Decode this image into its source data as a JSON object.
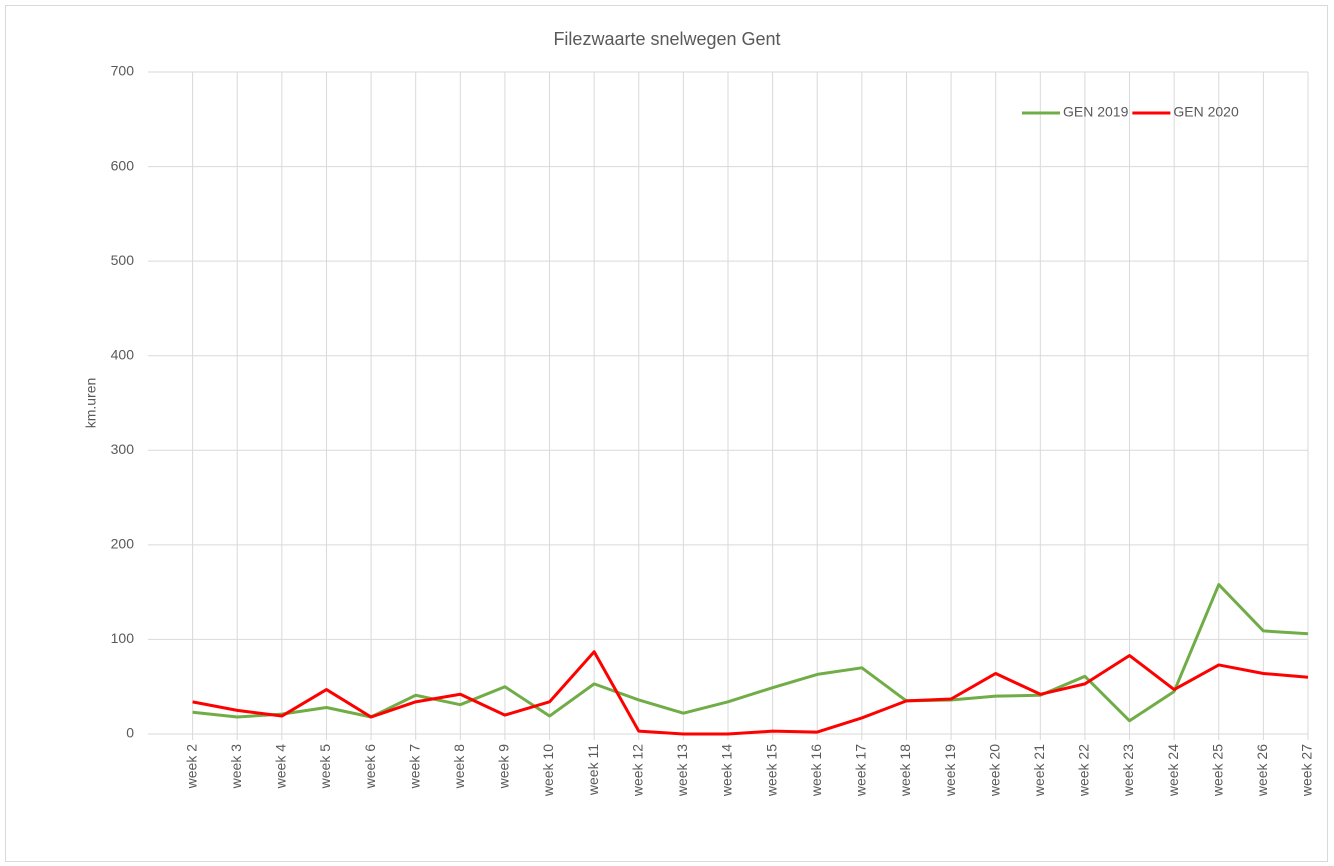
{
  "chart_data": {
    "type": "line",
    "title": "Filezwaarte snelwegen Gent",
    "y_label": "km.uren",
    "categories": [
      null,
      "week 2",
      "week 3",
      "week 4",
      "week 5",
      "week 6",
      "week 7",
      "week 8",
      "week 9",
      "week 10",
      "week 11",
      "week 12",
      "week 13",
      "week 14",
      "week 15",
      "week 16",
      "week 17",
      "week 18",
      "week 19",
      "week 20",
      "week 21",
      "week 22",
      "week 23",
      "week 24",
      "week 25",
      "week 26",
      "week 27"
    ],
    "series": [
      {
        "name": "GEN 2019",
        "color": "#70ad47",
        "values": [
          null,
          23,
          18,
          21,
          28,
          18,
          41,
          31,
          50,
          19,
          53,
          36,
          22,
          34,
          49,
          63,
          70,
          35,
          36,
          40,
          41,
          61,
          14,
          45,
          158,
          109,
          106
        ]
      },
      {
        "name": "GEN 2020",
        "color": "#ff0000",
        "values": [
          null,
          34,
          25,
          19,
          47,
          18,
          34,
          42,
          20,
          34,
          87,
          3,
          0,
          0,
          3,
          2,
          17,
          35,
          37,
          64,
          42,
          53,
          83,
          47,
          73,
          64,
          60
        ]
      }
    ],
    "ylim": [
      0,
      700
    ],
    "yticks": [
      0,
      100,
      200,
      300,
      400,
      500,
      600,
      700
    ],
    "grid": true,
    "legend": "top-right"
  }
}
